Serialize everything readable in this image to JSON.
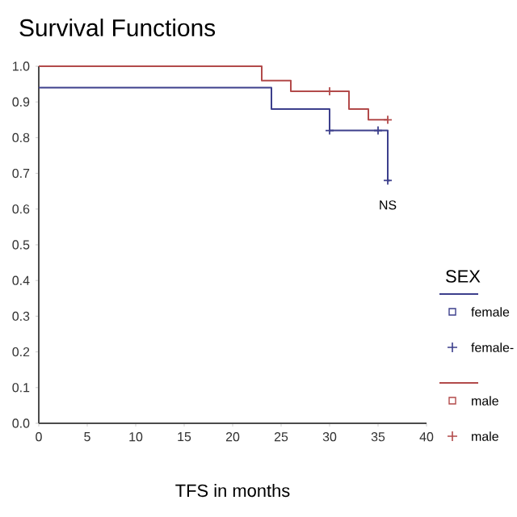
{
  "chart_data": {
    "type": "step",
    "title": "Survival Functions",
    "xlabel": "TFS in months",
    "legend_title": "SEX",
    "legend": "right",
    "xlim": [
      0,
      40
    ],
    "ylim": [
      0,
      1.0
    ],
    "xticks": [
      0,
      5,
      10,
      15,
      20,
      25,
      30,
      35,
      40
    ],
    "yticks": [
      {
        "value": 0,
        "label": "0.0"
      },
      0.1,
      0.2,
      0.3,
      0.4,
      0.5,
      0.6,
      0.7,
      0.8,
      0.9,
      {
        "value": 1.0,
        "label": "1.0"
      }
    ],
    "annotations": [
      "NS"
    ],
    "series": [
      {
        "name": "female",
        "color": "#3c3f8c",
        "marker": "none",
        "x": [
          0,
          24,
          30,
          36,
          36.2
        ],
        "values": [
          0.94,
          0.88,
          0.82,
          0.68,
          0.68
        ]
      },
      {
        "name": "female-",
        "type": "scatter",
        "color": "#3c3f8c",
        "marker": "cross",
        "x": [
          30,
          35,
          36
        ],
        "values": [
          0.82,
          0.82,
          0.68
        ]
      },
      {
        "name": "male",
        "color": "#b24a4a",
        "marker": "none",
        "x": [
          0,
          23,
          26,
          32,
          34,
          36
        ],
        "values": [
          1.0,
          0.96,
          0.93,
          0.88,
          0.85,
          0.85
        ]
      },
      {
        "name": "male",
        "type": "scatter",
        "color": "#b24a4a",
        "marker": "cross",
        "x": [
          30,
          36
        ],
        "values": [
          0.93,
          0.85
        ]
      }
    ]
  }
}
